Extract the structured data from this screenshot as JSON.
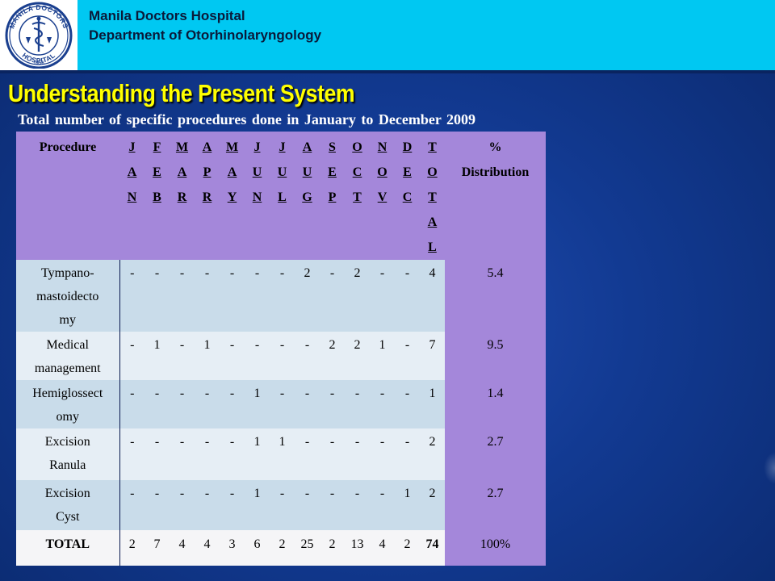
{
  "header": {
    "hospital_name": "Manila Doctors Hospital",
    "department": "Department of Otorhinolaryngology",
    "logo": {
      "top_text": "MANILA DOCTORS",
      "bottom_text": "HOSPITAL",
      "year": "1956",
      "icon": "caduceus-seal-icon"
    }
  },
  "title": "Understanding the Present System",
  "subtitle": "Total number of specific   procedures done in January to December 2009",
  "table": {
    "procedure_header": "Procedure",
    "month_headers": [
      [
        "J",
        "A",
        "N"
      ],
      [
        "F",
        "E",
        "B"
      ],
      [
        "M",
        "A",
        "R"
      ],
      [
        "A",
        "P",
        "R"
      ],
      [
        "M",
        "A",
        "Y"
      ],
      [
        "J",
        "U",
        "N"
      ],
      [
        "J",
        "U",
        "L"
      ],
      [
        "A",
        "U",
        "G"
      ],
      [
        "S",
        "E",
        "P"
      ],
      [
        "O",
        "C",
        "T"
      ],
      [
        "N",
        "O",
        "V"
      ],
      [
        "D",
        "E",
        "C"
      ]
    ],
    "total_header": [
      "T",
      "O",
      "T",
      "A",
      "L"
    ],
    "pct_header": {
      "symbol": "%",
      "label": "Distribution"
    },
    "rows": [
      {
        "procedure": [
          "Tympano-",
          "mastoidecto",
          "my"
        ],
        "values": [
          "-",
          "-",
          "-",
          "-",
          "-",
          "-",
          "-",
          "2",
          "-",
          "2",
          "-",
          "-"
        ],
        "total": "4",
        "pct": "5.4"
      },
      {
        "procedure": [
          "Medical",
          "management"
        ],
        "values": [
          "-",
          "1",
          "-",
          "1",
          "-",
          "-",
          "-",
          "-",
          "2",
          "2",
          "1",
          "-"
        ],
        "total": "7",
        "pct": "9.5"
      },
      {
        "procedure": [
          "Hemiglossect",
          "omy"
        ],
        "values": [
          "-",
          "-",
          "-",
          "-",
          "-",
          "1",
          "-",
          "-",
          "-",
          "-",
          "-",
          "-"
        ],
        "total": "1",
        "pct": "1.4"
      },
      {
        "procedure": [
          "Excision",
          "Ranula"
        ],
        "values": [
          "-",
          "-",
          "-",
          "-",
          "-",
          "1",
          "1",
          "-",
          "-",
          "-",
          "-",
          "-"
        ],
        "total": "2",
        "pct": "2.7"
      },
      {
        "procedure": [
          "Excision",
          "Cyst"
        ],
        "values": [
          "-",
          "-",
          "-",
          "-",
          "-",
          "1",
          "-",
          "-",
          "-",
          "-",
          "-",
          "1"
        ],
        "total": "2",
        "pct": "2.7"
      }
    ],
    "total_row": {
      "label": "TOTAL",
      "values": [
        "2",
        "7",
        "4",
        "4",
        "3",
        "6",
        "2",
        "25",
        "2",
        "13",
        "4",
        "2"
      ],
      "total": "74",
      "pct": "100%"
    }
  }
}
